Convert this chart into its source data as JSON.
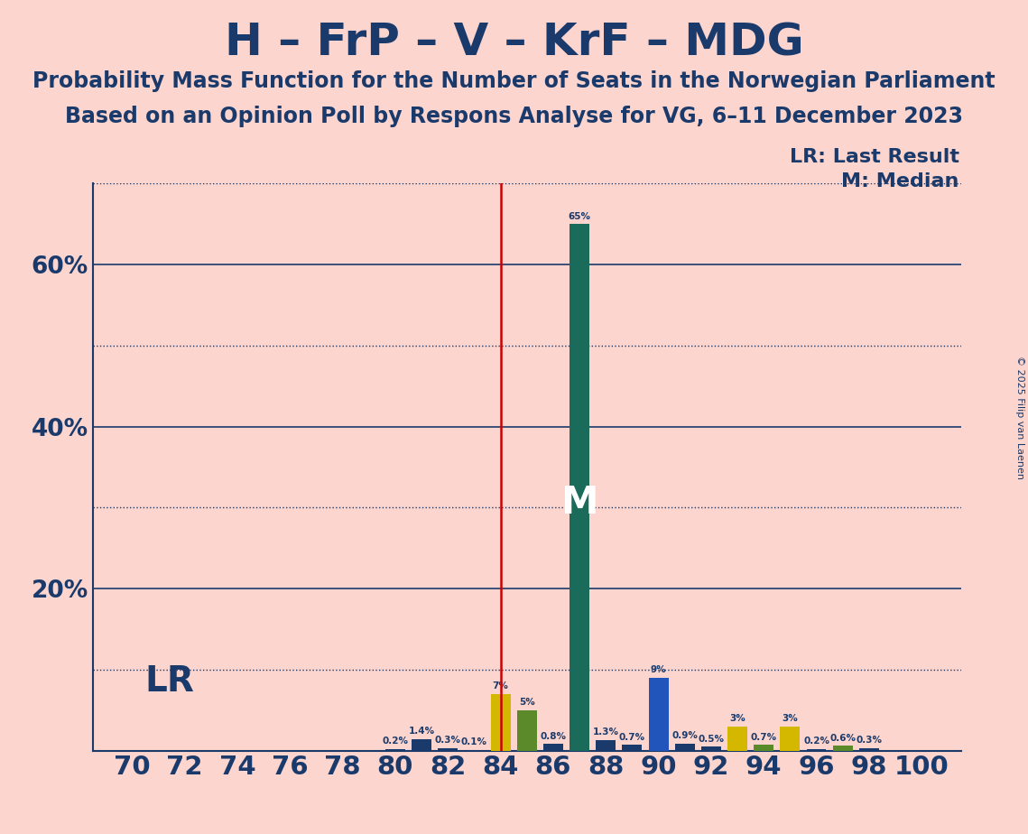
{
  "title": "H – FrP – V – KrF – MDG",
  "subtitle1": "Probability Mass Function for the Number of Seats in the Norwegian Parliament",
  "subtitle2": "Based on an Opinion Poll by Respons Analyse for VG, 6–11 December 2023",
  "copyright": "© 2025 Filip van Laenen",
  "lr_label": "LR: Last Result",
  "m_label": "M: Median",
  "lr_x": 84,
  "median_x": 87,
  "background_color": "#fcd5ce",
  "bar_color_navy": "#1a3a6b",
  "bar_color_yellow": "#d4b800",
  "bar_color_teal": "#1a6b5a",
  "bar_color_olive": "#5a8a2a",
  "bar_color_blue": "#2255bb",
  "lr_line_color": "#cc0000",
  "axis_color": "#1a3a6b",
  "grid_color": "#1a3a6b",
  "text_color": "#1a3a6b",
  "seats": [
    70,
    71,
    72,
    73,
    74,
    75,
    76,
    77,
    78,
    79,
    80,
    81,
    82,
    83,
    84,
    85,
    86,
    87,
    88,
    89,
    90,
    91,
    92,
    93,
    94,
    95,
    96,
    97,
    98,
    99,
    100
  ],
  "values": [
    0.0,
    0.0,
    0.0,
    0.0,
    0.0,
    0.0,
    0.0,
    0.0,
    0.0,
    0.0,
    0.2,
    1.4,
    0.3,
    0.1,
    7.0,
    5.0,
    0.8,
    65.0,
    1.3,
    0.7,
    9.0,
    0.9,
    0.5,
    3.0,
    0.7,
    3.0,
    0.2,
    0.6,
    0.3,
    0.0,
    0.0
  ],
  "bar_colors": [
    "#1a3a6b",
    "#1a3a6b",
    "#1a3a6b",
    "#1a3a6b",
    "#1a3a6b",
    "#1a3a6b",
    "#1a3a6b",
    "#1a3a6b",
    "#1a3a6b",
    "#1a3a6b",
    "#1a3a6b",
    "#1a3a6b",
    "#1a3a6b",
    "#1a3a6b",
    "#d4b800",
    "#5a8a2a",
    "#1a3a6b",
    "#1a6b5a",
    "#1a3a6b",
    "#1a3a6b",
    "#2255bb",
    "#1a3a6b",
    "#1a3a6b",
    "#d4b800",
    "#5a8a2a",
    "#d4b800",
    "#1a3a6b",
    "#5a8a2a",
    "#1a3a6b",
    "#1a3a6b",
    "#1a3a6b"
  ],
  "solid_yticks": [
    20,
    40,
    60
  ],
  "dotted_yticks": [
    10,
    30,
    50,
    70
  ],
  "ylim": [
    0,
    70
  ],
  "xlim_left": 68.5,
  "xlim_right": 101.5
}
